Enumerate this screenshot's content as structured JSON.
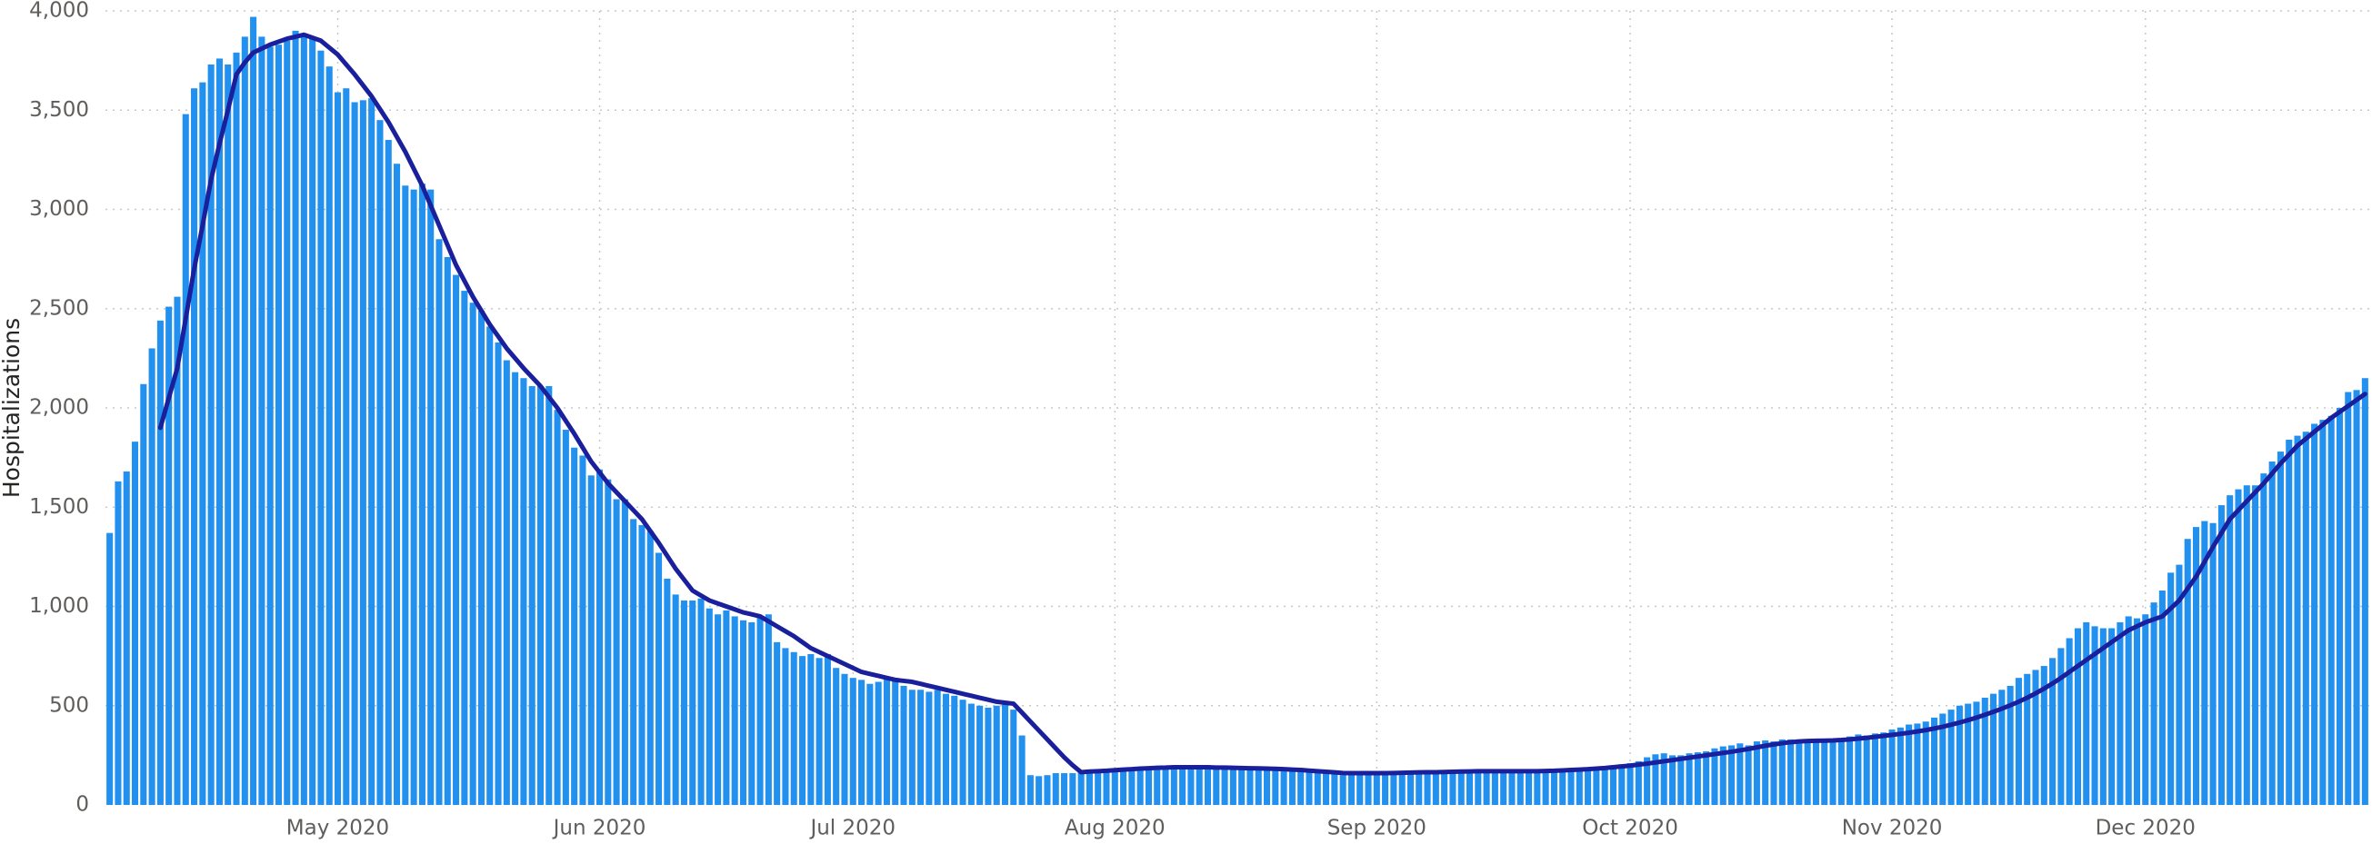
{
  "chart_data": {
    "type": "bar",
    "y_axis_label": "Hospitalizations",
    "categories": [
      null,
      null,
      null,
      null,
      null,
      null,
      null,
      null,
      null,
      null,
      null,
      null,
      null,
      null,
      null,
      null,
      null,
      null,
      null,
      null,
      null,
      null,
      null,
      null,
      null,
      null,
      null,
      "May 2020",
      null,
      null,
      null,
      null,
      null,
      null,
      null,
      null,
      null,
      null,
      null,
      null,
      null,
      null,
      null,
      null,
      null,
      null,
      null,
      null,
      null,
      null,
      null,
      null,
      null,
      null,
      null,
      null,
      null,
      null,
      "Jun 2020",
      null,
      null,
      null,
      null,
      null,
      null,
      null,
      null,
      null,
      null,
      null,
      null,
      null,
      null,
      null,
      null,
      null,
      null,
      null,
      null,
      null,
      null,
      null,
      null,
      null,
      null,
      null,
      null,
      null,
      "Jul 2020",
      null,
      null,
      null,
      null,
      null,
      null,
      null,
      null,
      null,
      null,
      null,
      null,
      null,
      null,
      null,
      null,
      null,
      null,
      null,
      null,
      null,
      null,
      null,
      null,
      null,
      null,
      null,
      null,
      null,
      null,
      "Aug 2020",
      null,
      null,
      null,
      null,
      null,
      null,
      null,
      null,
      null,
      null,
      null,
      null,
      null,
      null,
      null,
      null,
      null,
      null,
      null,
      null,
      null,
      null,
      null,
      null,
      null,
      null,
      null,
      null,
      null,
      null,
      "Sep 2020",
      null,
      null,
      null,
      null,
      null,
      null,
      null,
      null,
      null,
      null,
      null,
      null,
      null,
      null,
      null,
      null,
      null,
      null,
      null,
      null,
      null,
      null,
      null,
      null,
      null,
      null,
      null,
      null,
      null,
      "Oct 2020",
      null,
      null,
      null,
      null,
      null,
      null,
      null,
      null,
      null,
      null,
      null,
      null,
      null,
      null,
      null,
      null,
      null,
      null,
      null,
      null,
      null,
      null,
      null,
      null,
      null,
      null,
      null,
      null,
      null,
      null,
      "Nov 2020",
      null,
      null,
      null,
      null,
      null,
      null,
      null,
      null,
      null,
      null,
      null,
      null,
      null,
      null,
      null,
      null,
      null,
      null,
      null,
      null,
      null,
      null,
      null,
      null,
      null,
      null,
      null,
      null,
      null,
      "Dec 2020",
      null,
      null,
      null,
      null,
      null,
      null,
      null,
      null,
      null,
      null,
      null,
      null,
      null,
      null,
      null,
      null,
      null,
      null,
      null,
      null,
      null,
      null,
      null,
      null,
      null,
      null
    ],
    "series": [
      {
        "type": "bar",
        "color": "#2190ee",
        "values": [
          1370,
          1630,
          1680,
          1830,
          2120,
          2300,
          2440,
          2510,
          2560,
          3480,
          3610,
          3640,
          3730,
          3760,
          3730,
          3790,
          3870,
          3970,
          3870,
          3820,
          3830,
          3850,
          3900,
          3880,
          3860,
          3800,
          3720,
          3590,
          3610,
          3540,
          3550,
          3560,
          3450,
          3350,
          3230,
          3120,
          3100,
          3130,
          3100,
          2850,
          2760,
          2670,
          2590,
          2530,
          2490,
          2410,
          2330,
          2240,
          2180,
          2150,
          2110,
          2110,
          2110,
          1990,
          1890,
          1800,
          1760,
          1660,
          1690,
          1640,
          1540,
          1540,
          1440,
          1410,
          1380,
          1270,
          1140,
          1060,
          1030,
          1030,
          1040,
          990,
          960,
          980,
          950,
          930,
          920,
          950,
          960,
          820,
          790,
          770,
          750,
          760,
          740,
          760,
          690,
          660,
          640,
          630,
          610,
          620,
          640,
          640,
          600,
          580,
          580,
          570,
          580,
          560,
          550,
          530,
          510,
          500,
          490,
          500,
          520,
          480,
          350,
          150,
          145,
          150,
          160,
          160,
          160,
          165,
          165,
          170,
          170,
          175,
          175,
          180,
          185,
          190,
          185,
          190,
          190,
          195,
          195,
          195,
          190,
          190,
          190,
          185,
          185,
          185,
          185,
          180,
          180,
          180,
          175,
          175,
          170,
          165,
          160,
          155,
          150,
          150,
          150,
          150,
          150,
          150,
          155,
          155,
          155,
          160,
          160,
          160,
          160,
          160,
          165,
          165,
          170,
          170,
          170,
          170,
          170,
          170,
          165,
          165,
          170,
          170,
          175,
          180,
          185,
          185,
          190,
          195,
          200,
          205,
          210,
          220,
          240,
          255,
          260,
          250,
          250,
          260,
          265,
          270,
          285,
          295,
          300,
          310,
          300,
          320,
          325,
          320,
          330,
          330,
          330,
          325,
          325,
          325,
          330,
          335,
          345,
          355,
          350,
          360,
          365,
          380,
          390,
          405,
          410,
          420,
          440,
          460,
          480,
          500,
          510,
          520,
          540,
          560,
          580,
          600,
          640,
          660,
          680,
          700,
          740,
          790,
          840,
          890,
          920,
          900,
          890,
          890,
          920,
          950,
          940,
          960,
          1020,
          1080,
          1170,
          1210,
          1340,
          1400,
          1430,
          1420,
          1510,
          1560,
          1590,
          1610,
          1610,
          1670,
          1730,
          1780,
          1840,
          1860,
          1880,
          1920,
          1940,
          1960,
          2000,
          2080,
          2090,
          2150
        ]
      },
      {
        "type": "line",
        "color": "#1a1f9c",
        "values": [
          null,
          null,
          null,
          null,
          null,
          null,
          1900,
          2050,
          2200,
          2450,
          2700,
          2920,
          3150,
          3330,
          3500,
          3680,
          3740,
          3790,
          3810,
          3830,
          3845,
          3860,
          3870,
          3880,
          3865,
          3850,
          3815,
          3780,
          3730,
          3680,
          3625,
          3570,
          3505,
          3440,
          3365,
          3290,
          3205,
          3120,
          3020,
          2920,
          2820,
          2720,
          2640,
          2560,
          2490,
          2420,
          2360,
          2300,
          2250,
          2200,
          2155,
          2110,
          2055,
          2000,
          1935,
          1870,
          1800,
          1730,
          1675,
          1620,
          1575,
          1530,
          1485,
          1440,
          1380,
          1320,
          1255,
          1190,
          1135,
          1080,
          1055,
          1030,
          1015,
          1000,
          985,
          970,
          960,
          950,
          925,
          900,
          875,
          850,
          820,
          790,
          770,
          750,
          730,
          710,
          690,
          670,
          660,
          650,
          640,
          630,
          625,
          620,
          610,
          600,
          590,
          580,
          570,
          560,
          550,
          540,
          530,
          520,
          515,
          510,
          465,
          420,
          375,
          330,
          285,
          240,
          200,
          165,
          168,
          170,
          172,
          175,
          178,
          180,
          183,
          185,
          187,
          188,
          190,
          190,
          190,
          190,
          190,
          188,
          188,
          187,
          186,
          185,
          184,
          183,
          182,
          180,
          178,
          176,
          173,
          170,
          167,
          164,
          161,
          160,
          160,
          160,
          160,
          160,
          161,
          162,
          163,
          164,
          165,
          165,
          166,
          167,
          168,
          169,
          170,
          170,
          170,
          170,
          170,
          170,
          170,
          170,
          171,
          172,
          174,
          176,
          178,
          180,
          183,
          186,
          190,
          194,
          198,
          203,
          208,
          214,
          220,
          226,
          232,
          238,
          244,
          250,
          256,
          262,
          268,
          275,
          282,
          290,
          298,
          305,
          311,
          316,
          320,
          322,
          323,
          324,
          325,
          327,
          330,
          334,
          338,
          343,
          348,
          353,
          358,
          364,
          370,
          377,
          385,
          394,
          404,
          415,
          427,
          440,
          454,
          469,
          485,
          502,
          520,
          540,
          562,
          586,
          612,
          640,
          670,
          700,
          730,
          760,
          790,
          820,
          850,
          880,
          900,
          920,
          935,
          950,
          990,
          1030,
          1090,
          1150,
          1225,
          1300,
          1370,
          1440,
          1485,
          1530,
          1575,
          1620,
          1670,
          1720,
          1765,
          1810,
          1845,
          1880,
          1915,
          1950,
          1980,
          2010,
          2040,
          2070
        ]
      }
    ],
    "ylim": [
      0,
      4000
    ],
    "yticks": [
      0,
      500,
      {
        "value": 1000,
        "label": "1,000"
      },
      {
        "value": 1500,
        "label": "1,500"
      },
      {
        "value": 2000,
        "label": "2,000"
      },
      {
        "value": 2500,
        "label": "2,500"
      },
      {
        "value": 3000,
        "label": "3,000"
      },
      {
        "value": 3500,
        "label": "3,500"
      },
      {
        "value": 4000,
        "label": "4,000"
      }
    ],
    "grid": true
  }
}
